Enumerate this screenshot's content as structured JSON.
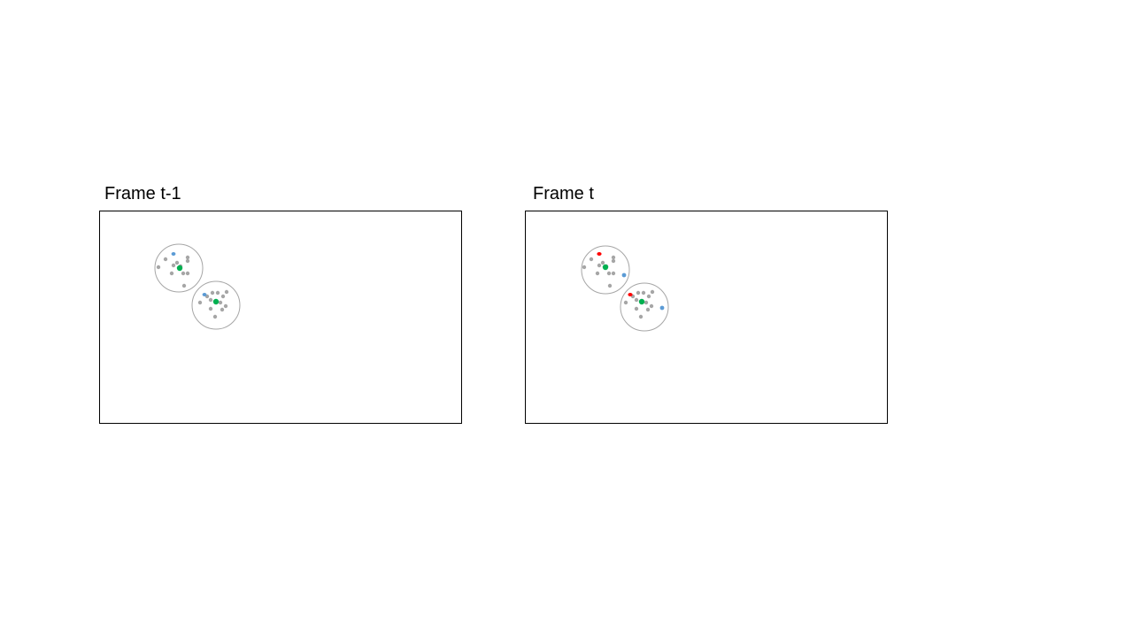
{
  "colors": {
    "frame_border": "#000000",
    "region_circle": "#a6a6a6",
    "background_point": "#a6a6a6",
    "centroid": "#00b050",
    "tracked_previous": "#5b9bd5",
    "new_point": "#ff0000"
  },
  "point_roles": {
    "background": "grey-point-icon",
    "centroid": "green-centroid-icon",
    "tracked": "blue-point-icon",
    "new": "red-point-icon"
  },
  "frames": [
    {
      "id": "prev",
      "title": "Frame t-1",
      "clusters": [
        {
          "name": "cluster-1",
          "centroid": true,
          "grey_point_count": 11,
          "blue_point_count": 1,
          "red_point_count": 0
        },
        {
          "name": "cluster-2",
          "centroid": true,
          "grey_point_count": 12,
          "blue_point_count": 1,
          "red_point_count": 0
        }
      ]
    },
    {
      "id": "curr",
      "title": "Frame t",
      "clusters": [
        {
          "name": "cluster-1",
          "centroid": true,
          "grey_point_count": 11,
          "blue_point_count": 1,
          "red_point_count": 1
        },
        {
          "name": "cluster-2",
          "centroid": true,
          "grey_point_count": 12,
          "blue_point_count": 1,
          "red_point_count": 1
        }
      ]
    }
  ]
}
